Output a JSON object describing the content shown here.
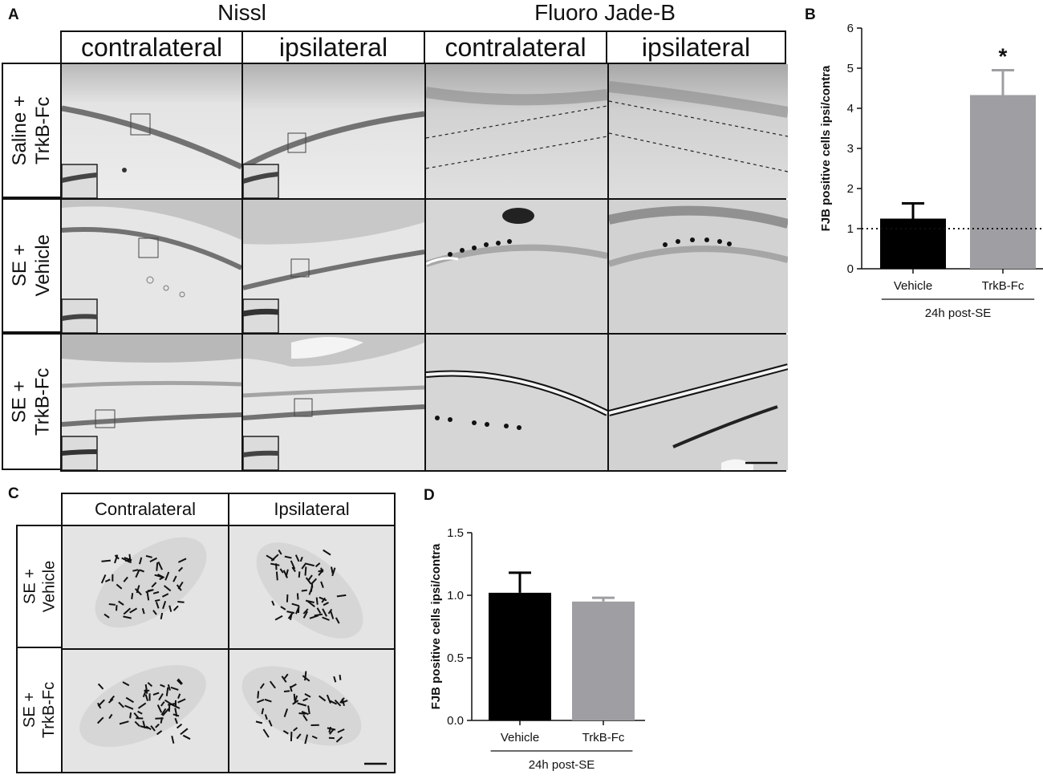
{
  "panel_a": {
    "letter": "A",
    "group_titles": [
      "Nissl",
      "Fluoro Jade-B"
    ],
    "column_headers": [
      "contralateral",
      "ipsilateral",
      "contralateral",
      "ipsilateral"
    ],
    "row_headers": [
      "Saline +\nTrkB-Fc",
      "SE +\nVehicle",
      "SE +\nTrkB-Fc"
    ]
  },
  "panel_c": {
    "letter": "C",
    "column_headers": [
      "Contralateral",
      "Ipsilateral"
    ],
    "row_headers": [
      "SE +\nVehicle",
      "SE +\nTrkB-Fc"
    ]
  },
  "panel_b": {
    "letter": "B"
  },
  "panel_d": {
    "letter": "D"
  },
  "chart_data": [
    {
      "panel": "B",
      "type": "bar",
      "categories": [
        "Vehicle",
        "TrkB-Fc"
      ],
      "values": [
        1.25,
        4.33
      ],
      "errors": [
        0.38,
        0.62
      ],
      "colors": [
        "#000000",
        "#9e9ea3"
      ],
      "ylabel": "FJB positive cells ipsi/contra",
      "xgroup_label": "24h post-SE",
      "ylim": [
        0,
        6
      ],
      "yticks": [
        0,
        1,
        2,
        3,
        4,
        5,
        6
      ],
      "ytick_labels": [
        "0",
        "1",
        "2",
        "3",
        "4",
        "5",
        "6"
      ],
      "reference_line": 1,
      "annotations": [
        {
          "category": "TrkB-Fc",
          "text": "*"
        }
      ]
    },
    {
      "panel": "D",
      "type": "bar",
      "categories": [
        "Vehicle",
        "TrkB-Fc"
      ],
      "values": [
        1.02,
        0.95
      ],
      "errors": [
        0.16,
        0.03
      ],
      "colors": [
        "#000000",
        "#9e9ea3"
      ],
      "ylabel": "FJB positive cells ipsi/contra",
      "xgroup_label": "24h post-SE",
      "ylim": [
        0,
        1.5
      ],
      "yticks": [
        0,
        0.5,
        1.0,
        1.5
      ],
      "ytick_labels": [
        "0.0",
        "0.5",
        "1.0",
        "1.5"
      ],
      "annotations": []
    }
  ]
}
